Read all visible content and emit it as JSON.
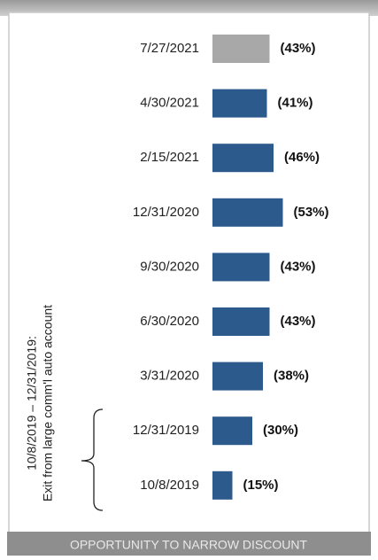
{
  "chart_data": {
    "type": "bar",
    "orientation": "horizontal",
    "categories": [
      "7/27/2021",
      "4/30/2021",
      "2/15/2021",
      "12/31/2020",
      "9/30/2020",
      "6/30/2020",
      "3/31/2020",
      "12/31/2019",
      "10/8/2019"
    ],
    "values": [
      43,
      41,
      46,
      53,
      43,
      43,
      38,
      30,
      15
    ],
    "value_labels": [
      "(43%)",
      "(41%)",
      "(46%)",
      "(53%)",
      "(43%)",
      "(43%)",
      "(38%)",
      "(30%)",
      "(15%)"
    ],
    "colors": [
      "#a8a8a8",
      "#2d5a8c",
      "#2d5a8c",
      "#2d5a8c",
      "#2d5a8c",
      "#2d5a8c",
      "#2d5a8c",
      "#2d5a8c",
      "#2d5a8c"
    ],
    "annotation": [
      "10/8/2019 – 12/31/2019:",
      "Exit from large comm'l auto account"
    ],
    "footer": "OPPORTUNITY TO NARROW DISCOUNT"
  }
}
